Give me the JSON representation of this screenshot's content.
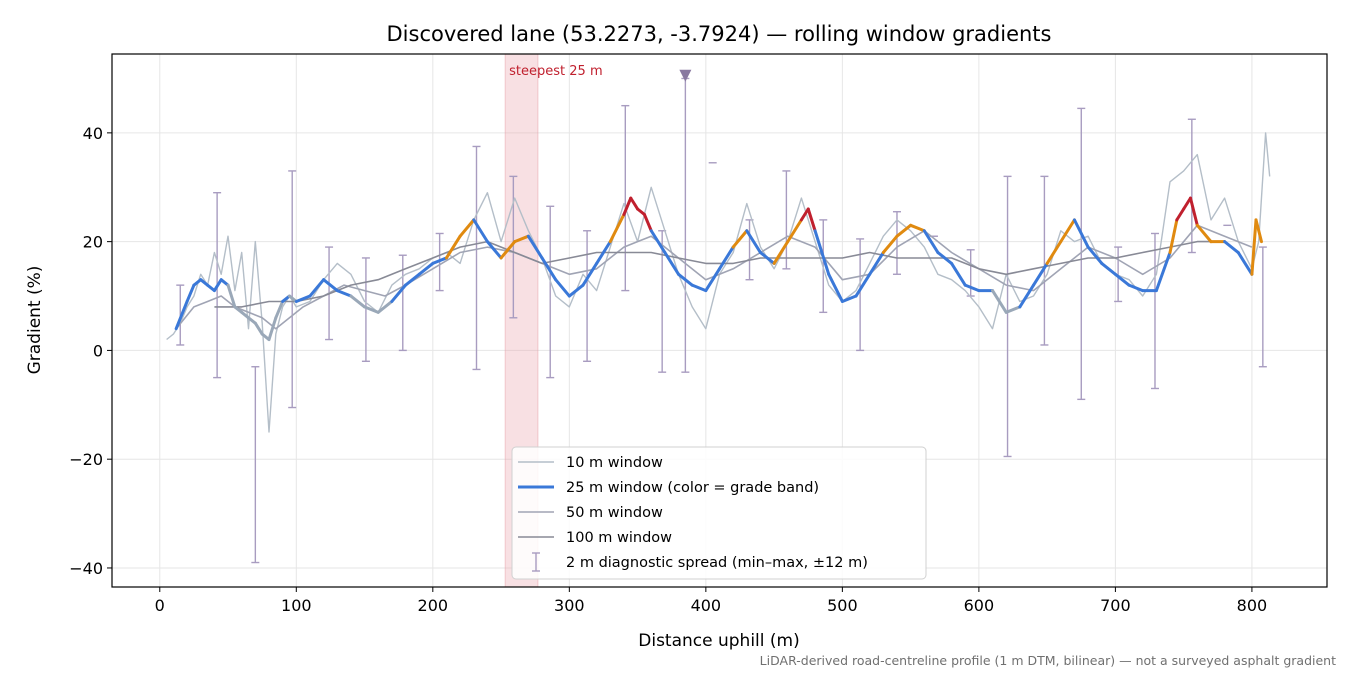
{
  "chart_data": {
    "type": "line",
    "title": "Discovered lane (53.2273, -3.7924) — rolling window gradients",
    "xlabel": "Distance uphill (m)",
    "ylabel": "Gradient (%)",
    "xlim": [
      -35,
      855
    ],
    "ylim": [
      -43.5,
      54.5
    ],
    "xticks": [
      0,
      100,
      200,
      300,
      400,
      500,
      600,
      700,
      800
    ],
    "yticks": [
      -40,
      -20,
      0,
      20,
      40
    ],
    "grid": true,
    "legend_position": "lower-center",
    "footnote": "LiDAR-derived road-centreline profile (1 m DTM, bilinear) — not a surveyed asphalt gradient",
    "highlight": {
      "label": "steepest 25 m",
      "x_start": 253,
      "x_end": 277,
      "color": "#e8a0a8"
    },
    "marker": {
      "x": 385,
      "y": 50.5,
      "color": "#8878a0"
    },
    "colors": {
      "w10": "#b4bec8",
      "w50": "#a0a4b4",
      "w100": "#888a96",
      "spread": "#a89cc0",
      "band_low": "#9aa8b8",
      "band_mid": "#3a78d8",
      "band_high": "#e08a10",
      "band_steep": "#c0202e"
    },
    "series": [
      {
        "name": "10 m window",
        "x": [
          5,
          10,
          15,
          20,
          25,
          30,
          35,
          40,
          45,
          50,
          55,
          60,
          65,
          70,
          75,
          80,
          85,
          90,
          95,
          100,
          110,
          120,
          130,
          140,
          150,
          160,
          170,
          180,
          190,
          200,
          210,
          220,
          230,
          240,
          250,
          260,
          270,
          280,
          290,
          300,
          310,
          320,
          330,
          340,
          350,
          360,
          370,
          380,
          390,
          400,
          410,
          420,
          430,
          440,
          450,
          460,
          470,
          480,
          490,
          500,
          510,
          520,
          530,
          540,
          550,
          560,
          570,
          580,
          590,
          600,
          610,
          620,
          630,
          640,
          650,
          660,
          670,
          680,
          690,
          700,
          710,
          720,
          730,
          740,
          750,
          760,
          770,
          780,
          790,
          800,
          805,
          810,
          813
        ],
        "values": [
          2,
          3,
          5,
          8,
          10,
          14,
          12,
          18,
          14,
          21,
          11,
          18,
          4,
          20,
          5,
          -15,
          3,
          8,
          10,
          8,
          9,
          13,
          16,
          14,
          9,
          7,
          12,
          14,
          15,
          17,
          18,
          16,
          24,
          29,
          20,
          28,
          22,
          17,
          10,
          8,
          14,
          11,
          19,
          27,
          20,
          30,
          22,
          14,
          8,
          4,
          14,
          18,
          27,
          19,
          15,
          20,
          28,
          20,
          12,
          9,
          11,
          16,
          21,
          24,
          22,
          19,
          14,
          13,
          11,
          8,
          4,
          14,
          9,
          10,
          14,
          22,
          20,
          21,
          16,
          14,
          13,
          10,
          14,
          31,
          33,
          36,
          24,
          28,
          20,
          15,
          20,
          40,
          32
        ]
      },
      {
        "name": "25 m window (color = grade band)",
        "x": [
          12,
          20,
          25,
          30,
          35,
          40,
          45,
          50,
          55,
          60,
          65,
          70,
          75,
          80,
          85,
          90,
          95,
          100,
          110,
          120,
          130,
          140,
          150,
          160,
          170,
          180,
          190,
          200,
          210,
          220,
          230,
          240,
          250,
          260,
          270,
          280,
          290,
          300,
          310,
          320,
          330,
          340,
          345,
          350,
          355,
          360,
          370,
          380,
          390,
          400,
          410,
          420,
          430,
          440,
          450,
          460,
          470,
          475,
          480,
          490,
          500,
          510,
          520,
          530,
          540,
          550,
          560,
          570,
          580,
          590,
          600,
          610,
          620,
          630,
          640,
          650,
          660,
          670,
          680,
          690,
          700,
          710,
          720,
          730,
          740,
          745,
          750,
          755,
          760,
          770,
          780,
          790,
          800,
          803,
          807
        ],
        "values": [
          4,
          9,
          12,
          13,
          12,
          11,
          13,
          12,
          8,
          7,
          6,
          5,
          3,
          2,
          6,
          9,
          10,
          9,
          10,
          13,
          11,
          10,
          8,
          7,
          9,
          12,
          14,
          16,
          17,
          21,
          24,
          20,
          17,
          20,
          21,
          17,
          13,
          10,
          12,
          16,
          20,
          25,
          28,
          26,
          25,
          22,
          18,
          14,
          12,
          11,
          15,
          19,
          22,
          18,
          16,
          20,
          24,
          26,
          22,
          14,
          9,
          10,
          14,
          18,
          21,
          23,
          22,
          18,
          16,
          12,
          11,
          11,
          7,
          8,
          12,
          16,
          20,
          24,
          19,
          16,
          14,
          12,
          11,
          11,
          18,
          24,
          26,
          28,
          23,
          20,
          20,
          18,
          14,
          24,
          20
        ],
        "bands": [
          "low",
          "mid",
          "mid",
          "mid",
          "mid",
          "mid",
          "mid",
          "mid",
          "low",
          "low",
          "low",
          "low",
          "low",
          "low",
          "low",
          "low",
          "mid",
          "low",
          "mid",
          "mid",
          "mid",
          "mid",
          "low",
          "low",
          "low",
          "mid",
          "mid",
          "mid",
          "mid",
          "high",
          "high",
          "mid",
          "mid",
          "high",
          "high",
          "mid",
          "mid",
          "mid",
          "mid",
          "mid",
          "mid",
          "high",
          "steep",
          "steep",
          "steep",
          "high",
          "mid",
          "mid",
          "mid",
          "mid",
          "mid",
          "mid",
          "high",
          "mid",
          "mid",
          "high",
          "high",
          "steep",
          "high",
          "mid",
          "mid",
          "mid",
          "mid",
          "mid",
          "high",
          "high",
          "high",
          "mid",
          "mid",
          "mid",
          "mid",
          "mid",
          "low",
          "low",
          "mid",
          "mid",
          "high",
          "high",
          "mid",
          "mid",
          "mid",
          "mid",
          "mid",
          "mid",
          "mid",
          "high",
          "steep",
          "steep",
          "high",
          "high",
          "high",
          "mid",
          "mid",
          "high",
          "high"
        ]
      },
      {
        "name": "50 m window",
        "x": [
          12,
          25,
          35,
          45,
          55,
          65,
          75,
          85,
          95,
          105,
          120,
          135,
          150,
          165,
          180,
          200,
          220,
          240,
          260,
          280,
          300,
          320,
          340,
          360,
          380,
          400,
          420,
          440,
          460,
          480,
          500,
          520,
          540,
          560,
          580,
          600,
          620,
          640,
          660,
          680,
          700,
          720,
          740,
          760,
          780,
          800
        ],
        "values": [
          4,
          8,
          9,
          10,
          8,
          7,
          6,
          4,
          6,
          8,
          10,
          12,
          11,
          10,
          12,
          15,
          18,
          19,
          18,
          16,
          14,
          15,
          19,
          21,
          17,
          13,
          15,
          18,
          21,
          19,
          13,
          14,
          19,
          22,
          18,
          15,
          12,
          11,
          15,
          19,
          17,
          14,
          17,
          23,
          21,
          19
        ]
      },
      {
        "name": "100 m window",
        "x": [
          40,
          60,
          80,
          100,
          120,
          140,
          160,
          180,
          200,
          220,
          240,
          260,
          280,
          300,
          320,
          340,
          360,
          380,
          400,
          420,
          440,
          460,
          480,
          500,
          520,
          540,
          560,
          580,
          600,
          620,
          640,
          660,
          680,
          700,
          720,
          740,
          760,
          780
        ],
        "values": [
          8,
          8,
          9,
          9,
          10,
          12,
          13,
          15,
          17,
          19,
          20,
          18,
          16,
          17,
          18,
          18,
          18,
          17,
          16,
          16,
          17,
          17,
          17,
          17,
          18,
          17,
          17,
          17,
          15,
          14,
          15,
          16,
          17,
          17,
          18,
          19,
          20,
          20
        ]
      }
    ],
    "spread": {
      "name": "2 m diagnostic spread (min–max, ±12 m)",
      "x": [
        15,
        42,
        70,
        97,
        124,
        151,
        178,
        205,
        232,
        259,
        286,
        313,
        341,
        368,
        385,
        405,
        432,
        459,
        486,
        513,
        540,
        567,
        594,
        621,
        648,
        675,
        702,
        729,
        756,
        782,
        808
      ],
      "min": [
        1,
        -5,
        -39,
        -10.5,
        2,
        -2,
        0,
        11,
        -3.5,
        6,
        -5,
        -2,
        11,
        -4,
        -4,
        null,
        13,
        15,
        7,
        0,
        14,
        21,
        10,
        -19.5,
        1,
        -9,
        9,
        -7,
        18,
        null,
        -3
      ],
      "max": [
        12,
        29,
        -3,
        33,
        19,
        17,
        17.5,
        21.5,
        37.5,
        32,
        26.5,
        22,
        45,
        22,
        50,
        34.5,
        24,
        33,
        24,
        20.5,
        25.5,
        21,
        18.5,
        32,
        32,
        44.5,
        19,
        21.5,
        42.5,
        23,
        19
      ]
    }
  }
}
